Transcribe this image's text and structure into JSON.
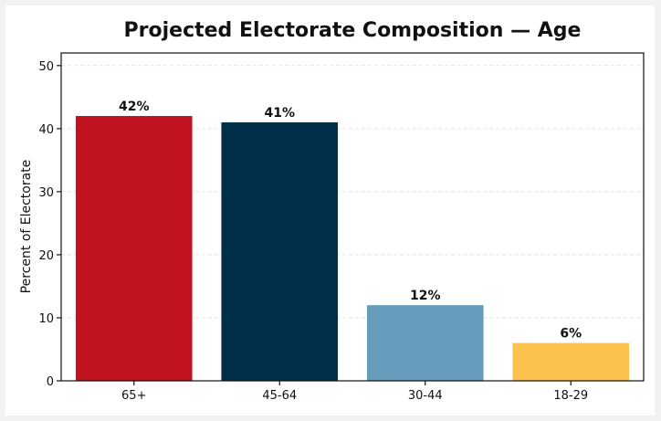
{
  "chart_data": {
    "type": "bar",
    "title": "Projected Electorate Composition — Age",
    "xlabel": "",
    "ylabel": "Percent of Electorate",
    "categories": [
      "65+",
      "45-64",
      "30-44",
      "18-29"
    ],
    "values": [
      42,
      41,
      12,
      6
    ],
    "data_labels": [
      "42%",
      "41%",
      "12%",
      "6%"
    ],
    "colors": [
      "#c1121f",
      "#003049",
      "#669bbc",
      "#fdc14e"
    ],
    "ylim": [
      0,
      52
    ],
    "yticks": [
      0,
      10,
      20,
      30,
      40,
      50
    ],
    "grid": true,
    "legend": "none"
  }
}
